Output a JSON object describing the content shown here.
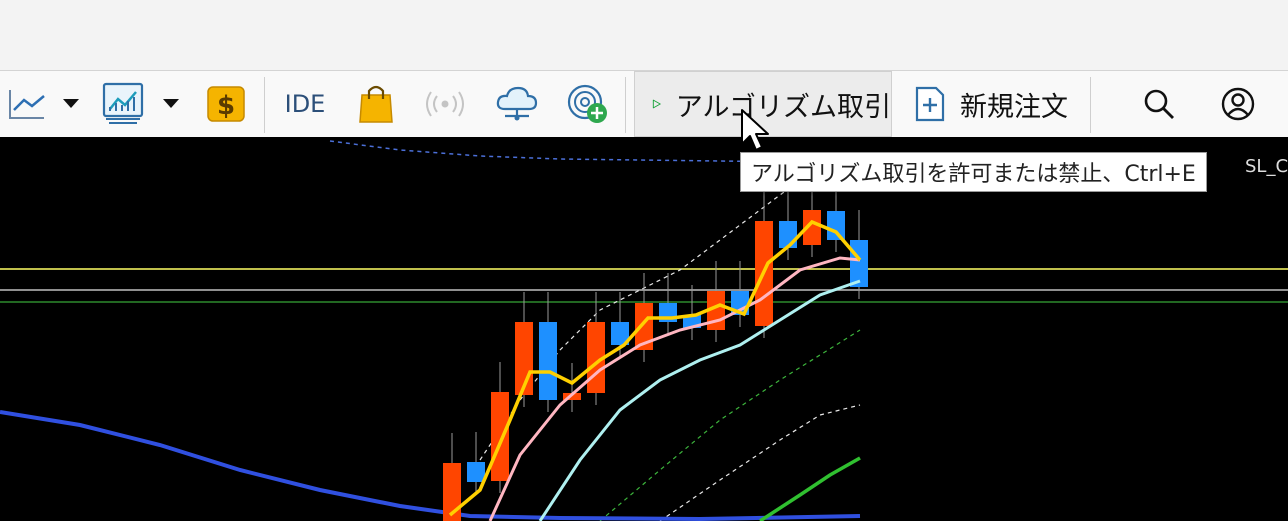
{
  "toolbar": {
    "ide_label": "IDE",
    "algo_label": "アルゴリズム取引",
    "new_order_label": "新規注文"
  },
  "tooltip": {
    "text": "アルゴリズム取引を許可または禁止、Ctrl+E"
  },
  "chart": {
    "edge_label": "SL_C"
  },
  "chart_data": {
    "type": "candlestick",
    "bull_color": "#1e90ff",
    "bear_color": "#ff4500",
    "ma_colors": [
      "#ffd000",
      "#ffb6c1",
      "#aff0f0",
      "#3050e0",
      "#30c030"
    ],
    "horizontal_lines": [
      "#ffff66",
      "#c0c0c0",
      "#2e8b2e"
    ]
  }
}
